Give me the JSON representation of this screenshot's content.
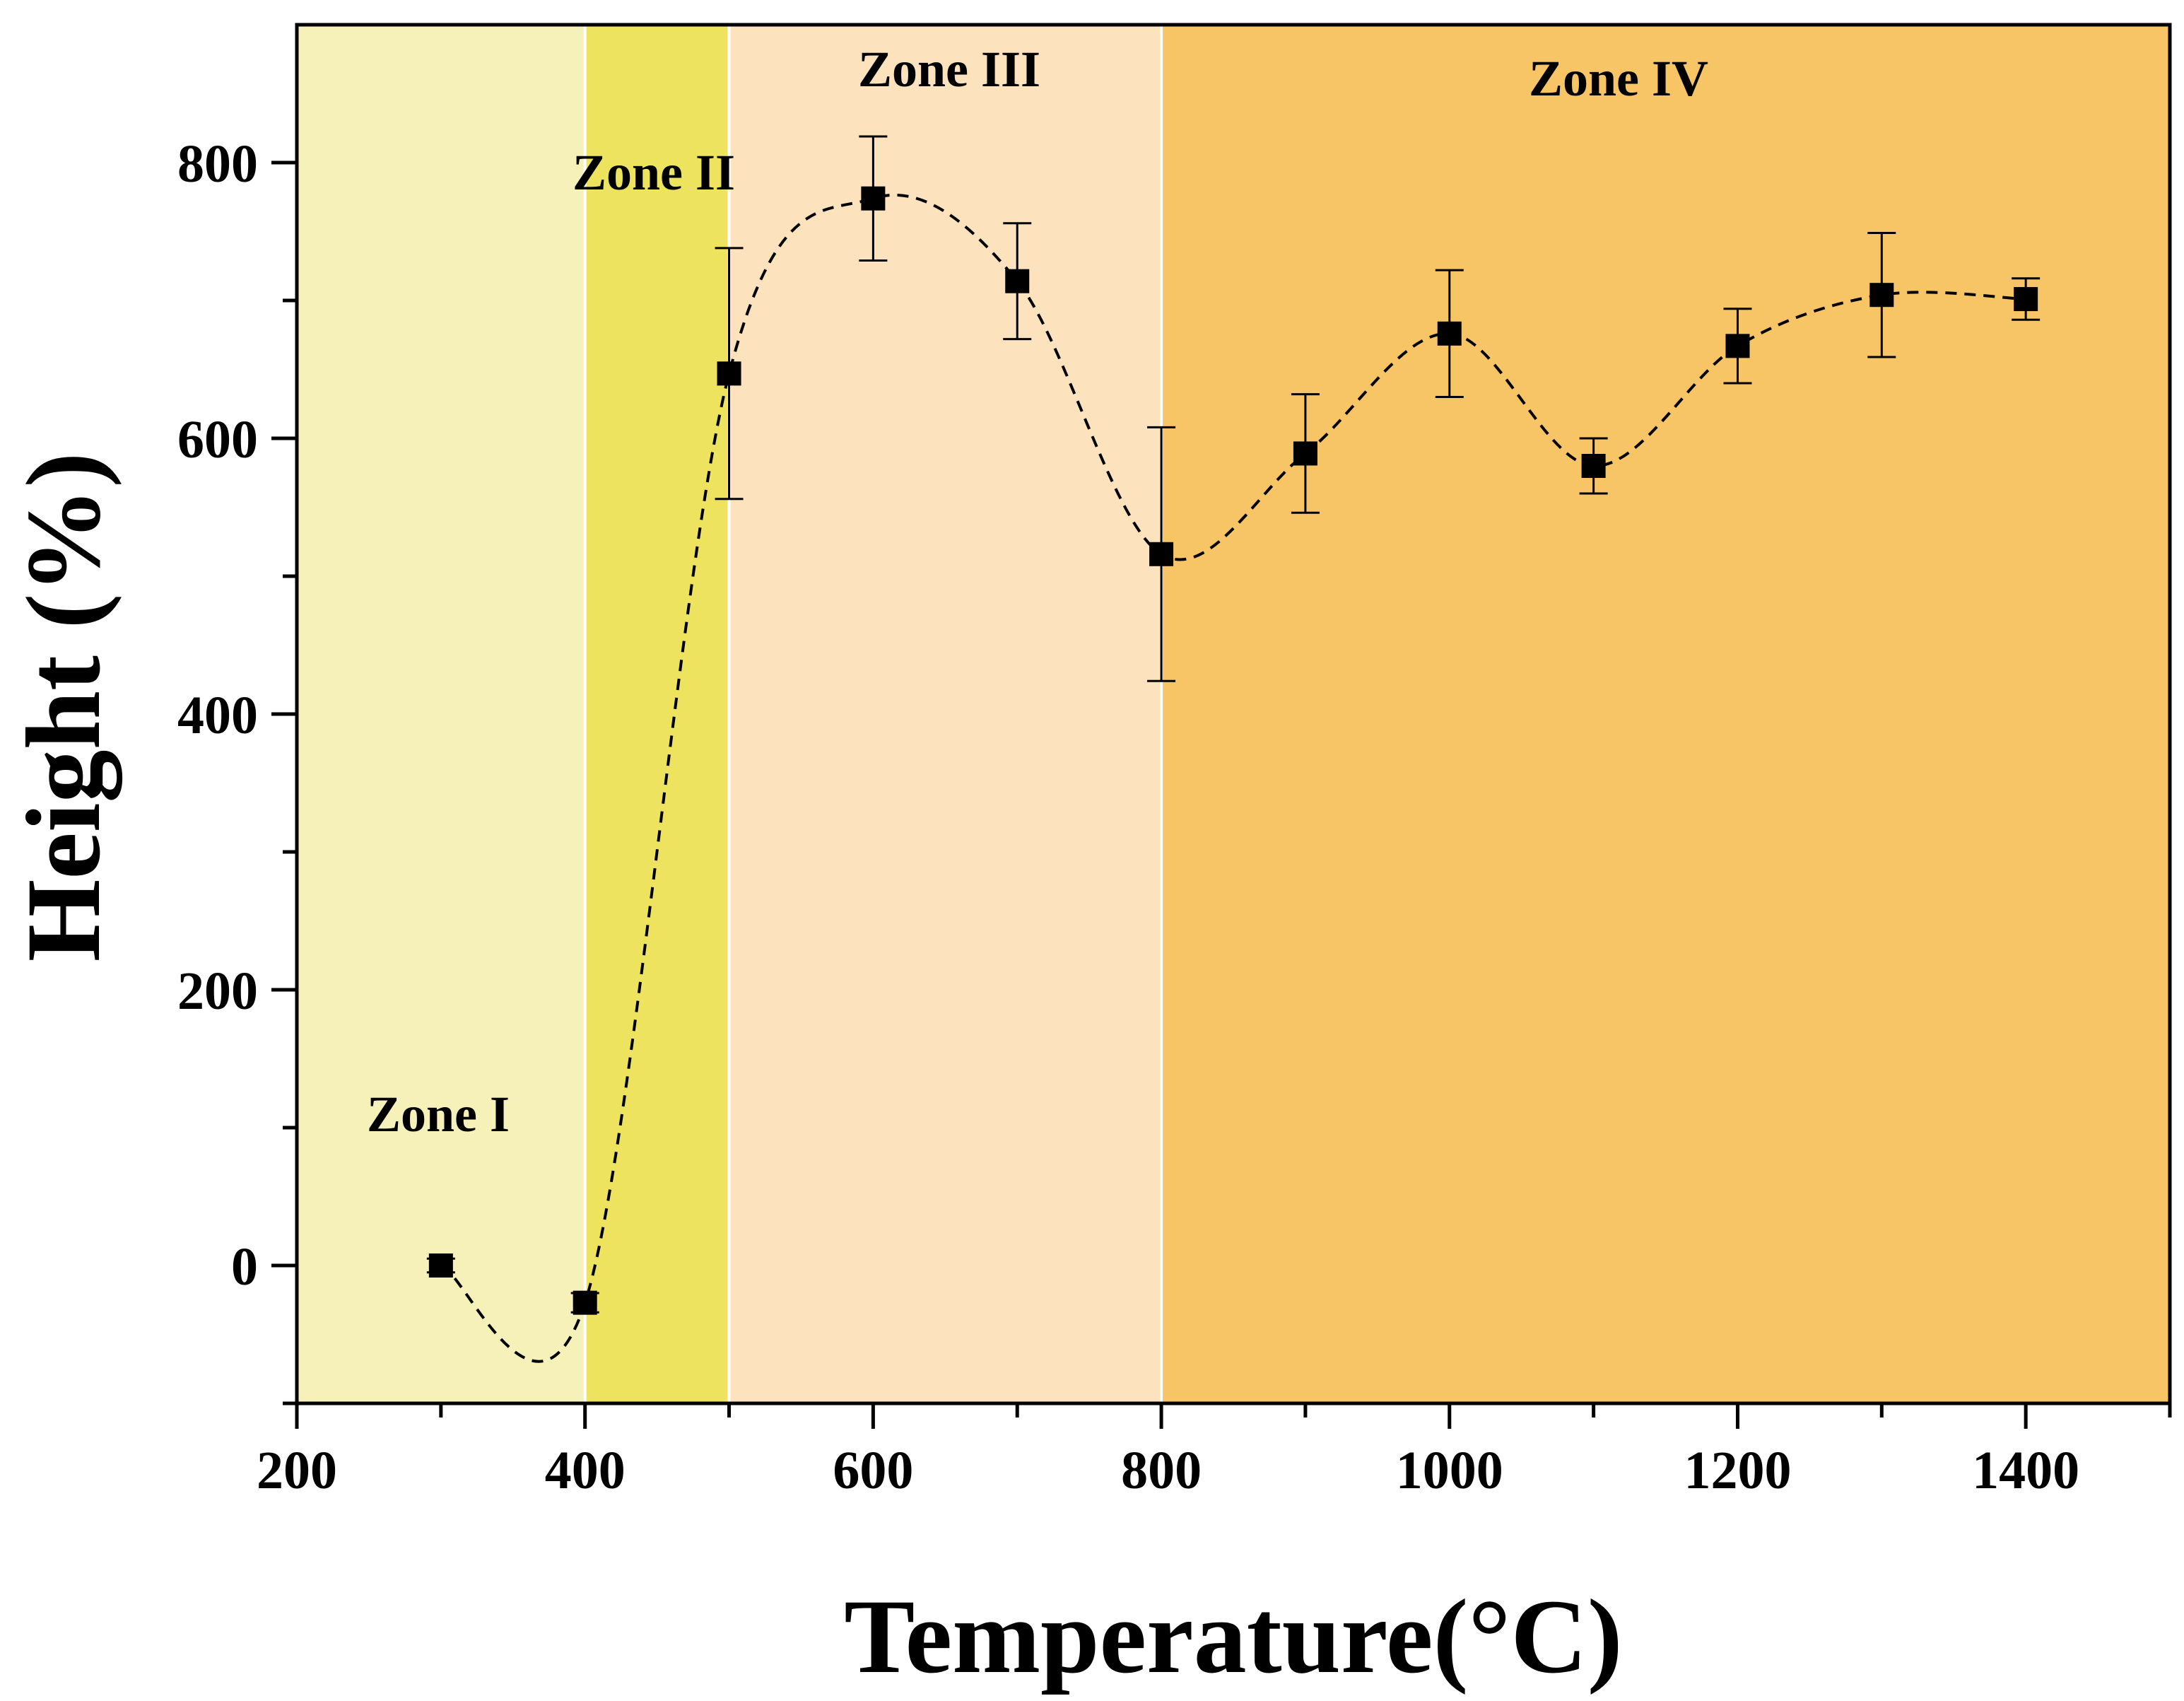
{
  "chart_data": {
    "type": "scatter",
    "xlabel": "Temperature(°C)",
    "ylabel": "Height (%)",
    "xlim": [
      200,
      1500
    ],
    "ylim": [
      -100,
      900
    ],
    "x_ticks": [
      200,
      400,
      600,
      800,
      1000,
      1200,
      1400
    ],
    "y_ticks": [
      0,
      200,
      400,
      600,
      800
    ],
    "grid": false,
    "legend": "none",
    "zones": [
      {
        "label": "Zone I",
        "x_start": 200,
        "x_end": 400,
        "color": "#F6F1B8"
      },
      {
        "label": "Zone II",
        "x_start": 400,
        "x_end": 500,
        "color": "#EDE35E"
      },
      {
        "label": "Zone III",
        "x_start": 500,
        "x_end": 800,
        "color": "#FCE2BD"
      },
      {
        "label": "Zone IV",
        "x_start": 800,
        "x_end": 1500,
        "color": "#F8C566"
      }
    ],
    "series": [
      {
        "x": [
          300,
          400,
          500,
          600,
          700,
          800,
          900,
          1000,
          1100,
          1200,
          1300,
          1400
        ],
        "y": [
          0,
          -27,
          647,
          774,
          714,
          516,
          589,
          676,
          580,
          667,
          704,
          701
        ],
        "error": [
          5,
          7,
          91,
          45,
          42,
          92,
          43,
          46,
          20,
          27,
          45,
          15
        ],
        "marker": "square",
        "color": "#000000",
        "fit_line": "dashed"
      }
    ]
  }
}
